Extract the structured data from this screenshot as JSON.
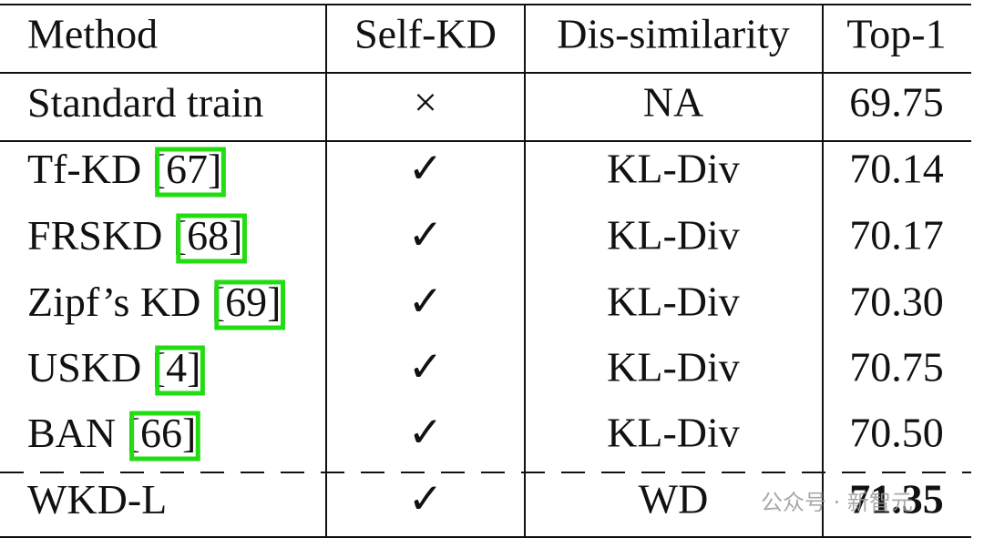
{
  "table": {
    "header": [
      "Method",
      "Self-KD",
      "Dis-similarity",
      "Top-1"
    ],
    "rows": [
      {
        "method": "Standard train",
        "cite": null,
        "self_kd": "×",
        "dissimilarity": "NA",
        "top1": "69.75"
      },
      {
        "method": "Tf-KD ",
        "cite": "[67]",
        "self_kd": "✓",
        "dissimilarity": "KL-Div",
        "top1": "70.14"
      },
      {
        "method": "FRSKD ",
        "cite": "[68]",
        "self_kd": "✓",
        "dissimilarity": "KL-Div",
        "top1": "70.17"
      },
      {
        "method": "Zipf’s KD ",
        "cite": "[69]",
        "self_kd": "✓",
        "dissimilarity": "KL-Div",
        "top1": "70.30"
      },
      {
        "method": "USKD ",
        "cite": "[4]",
        "self_kd": "✓",
        "dissimilarity": "KL-Div",
        "top1": "70.75"
      },
      {
        "method": "BAN ",
        "cite": "[66]",
        "self_kd": "✓",
        "dissimilarity": "KL-Div",
        "top1": "70.50"
      },
      {
        "method": "WKD-L",
        "cite": null,
        "self_kd": "✓",
        "dissimilarity": "WD",
        "top1": "71.35"
      }
    ]
  },
  "watermark": "公众号 · 新智元"
}
